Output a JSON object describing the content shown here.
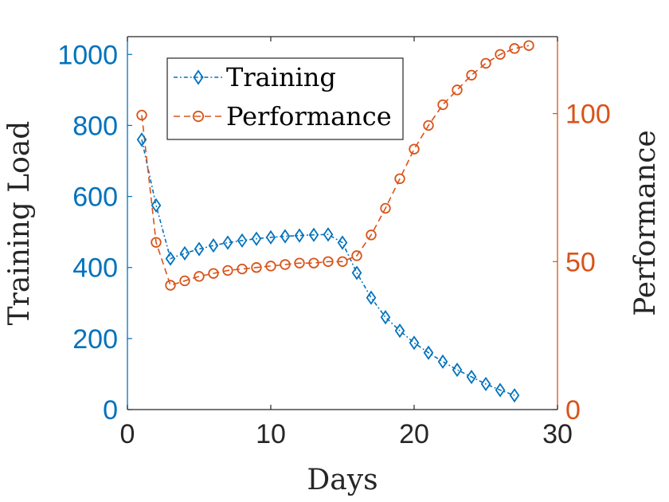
{
  "chart_data": {
    "type": "line",
    "title": "",
    "xlabel": "Days",
    "ylabel_left": "Training Load",
    "ylabel_right": "Performance",
    "xlim": [
      0,
      30
    ],
    "ylim_left": [
      0,
      1050
    ],
    "ylim_right": [
      0,
      126
    ],
    "xticks": [
      0,
      10,
      20,
      30
    ],
    "yticks_left": [
      0,
      200,
      400,
      600,
      800,
      1000
    ],
    "yticks_right": [
      0,
      50,
      100
    ],
    "grid": false,
    "legend_position": "top-left",
    "colors": {
      "left_axis": "#0072BD",
      "right_axis": "#D95319",
      "axis": "#262626"
    },
    "series": [
      {
        "name": "Training",
        "axis": "left",
        "color": "#0072BD",
        "marker": "diamond",
        "line_style": "dash-dot",
        "x": [
          1,
          2,
          3,
          4,
          5,
          6,
          7,
          8,
          9,
          10,
          11,
          12,
          13,
          14,
          15,
          16,
          17,
          18,
          19,
          20,
          21,
          22,
          23,
          24,
          25,
          26,
          27
        ],
        "values": [
          760,
          575,
          425,
          440,
          452,
          462,
          470,
          476,
          481,
          485,
          488,
          490,
          492,
          493,
          470,
          385,
          315,
          260,
          222,
          188,
          160,
          135,
          112,
          92,
          72,
          55,
          40
        ]
      },
      {
        "name": "Performance",
        "axis": "right",
        "color": "#D95319",
        "marker": "circle",
        "line_style": "dashed",
        "x": [
          1,
          2,
          3,
          4,
          5,
          6,
          7,
          8,
          9,
          10,
          11,
          12,
          13,
          14,
          15,
          16,
          17,
          18,
          19,
          20,
          21,
          22,
          23,
          24,
          25,
          26,
          27,
          28
        ],
        "values": [
          99.5,
          56.5,
          42,
          43.5,
          45,
          46,
          47,
          47.5,
          48,
          48.5,
          49,
          49.5,
          49.5,
          50,
          50,
          52,
          59,
          68,
          78,
          88,
          96,
          103,
          108,
          113,
          117,
          120,
          122,
          123
        ]
      }
    ]
  }
}
